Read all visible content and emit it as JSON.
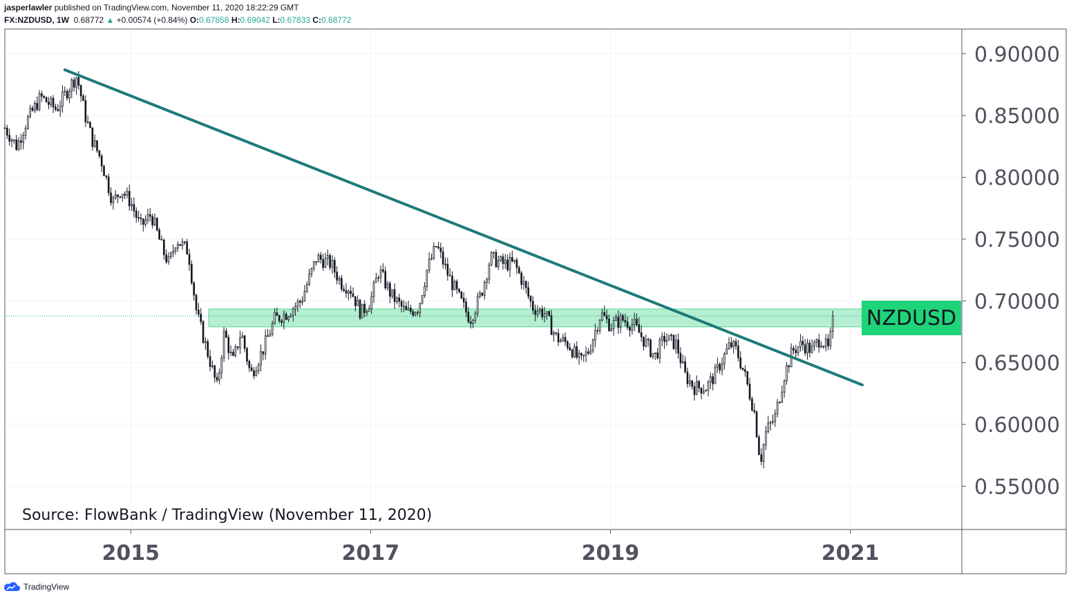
{
  "header": {
    "publisher": "jasperlawler",
    "published_text": "published on TradingView.com, November 11, 2020 18:22:29 GMT",
    "symbol": "FX:NZDUSD, 1W",
    "last": "0.68772",
    "change_arrow": "▲",
    "change": "+0.00574 (+0.84%)",
    "open_label": "O:",
    "open": "0.67858",
    "high_label": "H:",
    "high": "0.69042",
    "low_label": "L:",
    "low": "0.67833",
    "close_label": "C:",
    "close": "0.68772"
  },
  "footer": {
    "brand": "TradingView"
  },
  "colors": {
    "trendline": "#1d7a7a",
    "zone_fill": "#a6ecc8",
    "zone_stroke": "#5fd39a",
    "label_bg": "#1ed479",
    "up": "#26a69a",
    "candle": "#131722",
    "grid": "#f0f3fa",
    "axis": "#50535e"
  },
  "chart_data": {
    "type": "candlestick",
    "title": "FX:NZDUSD, 1W",
    "symbol_label": "NZDUSD",
    "source_note": "Source: FlowBank / TradingView (November 11, 2020)",
    "x_ticks": [
      {
        "label": "2015",
        "year": 2015.0
      },
      {
        "label": "2017",
        "year": 2017.0
      },
      {
        "label": "2019",
        "year": 2019.0
      },
      {
        "label": "2021",
        "year": 2021.0
      }
    ],
    "x_range": [
      2013.95,
      2021.93
    ],
    "y_ticks": [
      "0.55000",
      "0.60000",
      "0.65000",
      "0.70000",
      "0.75000",
      "0.80000",
      "0.85000",
      "0.90000"
    ],
    "y_range": [
      0.515,
      0.92
    ],
    "last_price": 0.68772,
    "trendline": [
      {
        "year": 2014.45,
        "price": 0.887
      },
      {
        "year": 2021.1,
        "price": 0.632
      }
    ],
    "resistance_zone": {
      "from_year": 2015.65,
      "to_year": 2021.1,
      "low": 0.679,
      "high": 0.6935
    },
    "price_path": [
      [
        2013.95,
        0.84
      ],
      [
        2014.05,
        0.825
      ],
      [
        2014.13,
        0.845
      ],
      [
        2014.25,
        0.865
      ],
      [
        2014.38,
        0.855
      ],
      [
        2014.5,
        0.875
      ],
      [
        2014.55,
        0.882
      ],
      [
        2014.62,
        0.85
      ],
      [
        2014.68,
        0.83
      ],
      [
        2014.75,
        0.815
      ],
      [
        2014.85,
        0.78
      ],
      [
        2014.92,
        0.79
      ],
      [
        2015.0,
        0.78
      ],
      [
        2015.08,
        0.76
      ],
      [
        2015.17,
        0.77
      ],
      [
        2015.27,
        0.74
      ],
      [
        2015.32,
        0.73
      ],
      [
        2015.38,
        0.75
      ],
      [
        2015.48,
        0.74
      ],
      [
        2015.55,
        0.69
      ],
      [
        2015.65,
        0.655
      ],
      [
        2015.72,
        0.63
      ],
      [
        2015.78,
        0.675
      ],
      [
        2015.85,
        0.65
      ],
      [
        2015.92,
        0.675
      ],
      [
        2016.0,
        0.64
      ],
      [
        2016.1,
        0.66
      ],
      [
        2016.2,
        0.685
      ],
      [
        2016.3,
        0.69
      ],
      [
        2016.42,
        0.7
      ],
      [
        2016.55,
        0.735
      ],
      [
        2016.67,
        0.73
      ],
      [
        2016.75,
        0.715
      ],
      [
        2016.83,
        0.71
      ],
      [
        2016.92,
        0.69
      ],
      [
        2017.0,
        0.7
      ],
      [
        2017.07,
        0.725
      ],
      [
        2017.17,
        0.705
      ],
      [
        2017.3,
        0.69
      ],
      [
        2017.4,
        0.695
      ],
      [
        2017.47,
        0.725
      ],
      [
        2017.55,
        0.745
      ],
      [
        2017.65,
        0.72
      ],
      [
        2017.75,
        0.7
      ],
      [
        2017.83,
        0.685
      ],
      [
        2017.92,
        0.705
      ],
      [
        2018.0,
        0.735
      ],
      [
        2018.1,
        0.73
      ],
      [
        2018.2,
        0.73
      ],
      [
        2018.27,
        0.715
      ],
      [
        2018.35,
        0.695
      ],
      [
        2018.45,
        0.69
      ],
      [
        2018.55,
        0.67
      ],
      [
        2018.65,
        0.665
      ],
      [
        2018.75,
        0.65
      ],
      [
        2018.82,
        0.66
      ],
      [
        2018.92,
        0.69
      ],
      [
        2019.0,
        0.68
      ],
      [
        2019.1,
        0.685
      ],
      [
        2019.2,
        0.68
      ],
      [
        2019.3,
        0.665
      ],
      [
        2019.37,
        0.655
      ],
      [
        2019.45,
        0.67
      ],
      [
        2019.55,
        0.665
      ],
      [
        2019.62,
        0.64
      ],
      [
        2019.7,
        0.63
      ],
      [
        2019.8,
        0.63
      ],
      [
        2019.87,
        0.64
      ],
      [
        2019.92,
        0.65
      ],
      [
        2020.0,
        0.665
      ],
      [
        2020.05,
        0.66
      ],
      [
        2020.12,
        0.64
      ],
      [
        2020.2,
        0.61
      ],
      [
        2020.25,
        0.57
      ],
      [
        2020.3,
        0.595
      ],
      [
        2020.37,
        0.605
      ],
      [
        2020.45,
        0.64
      ],
      [
        2020.52,
        0.66
      ],
      [
        2020.6,
        0.665
      ],
      [
        2020.68,
        0.66
      ],
      [
        2020.75,
        0.67
      ],
      [
        2020.82,
        0.66
      ],
      [
        2020.86,
        0.688
      ]
    ]
  }
}
